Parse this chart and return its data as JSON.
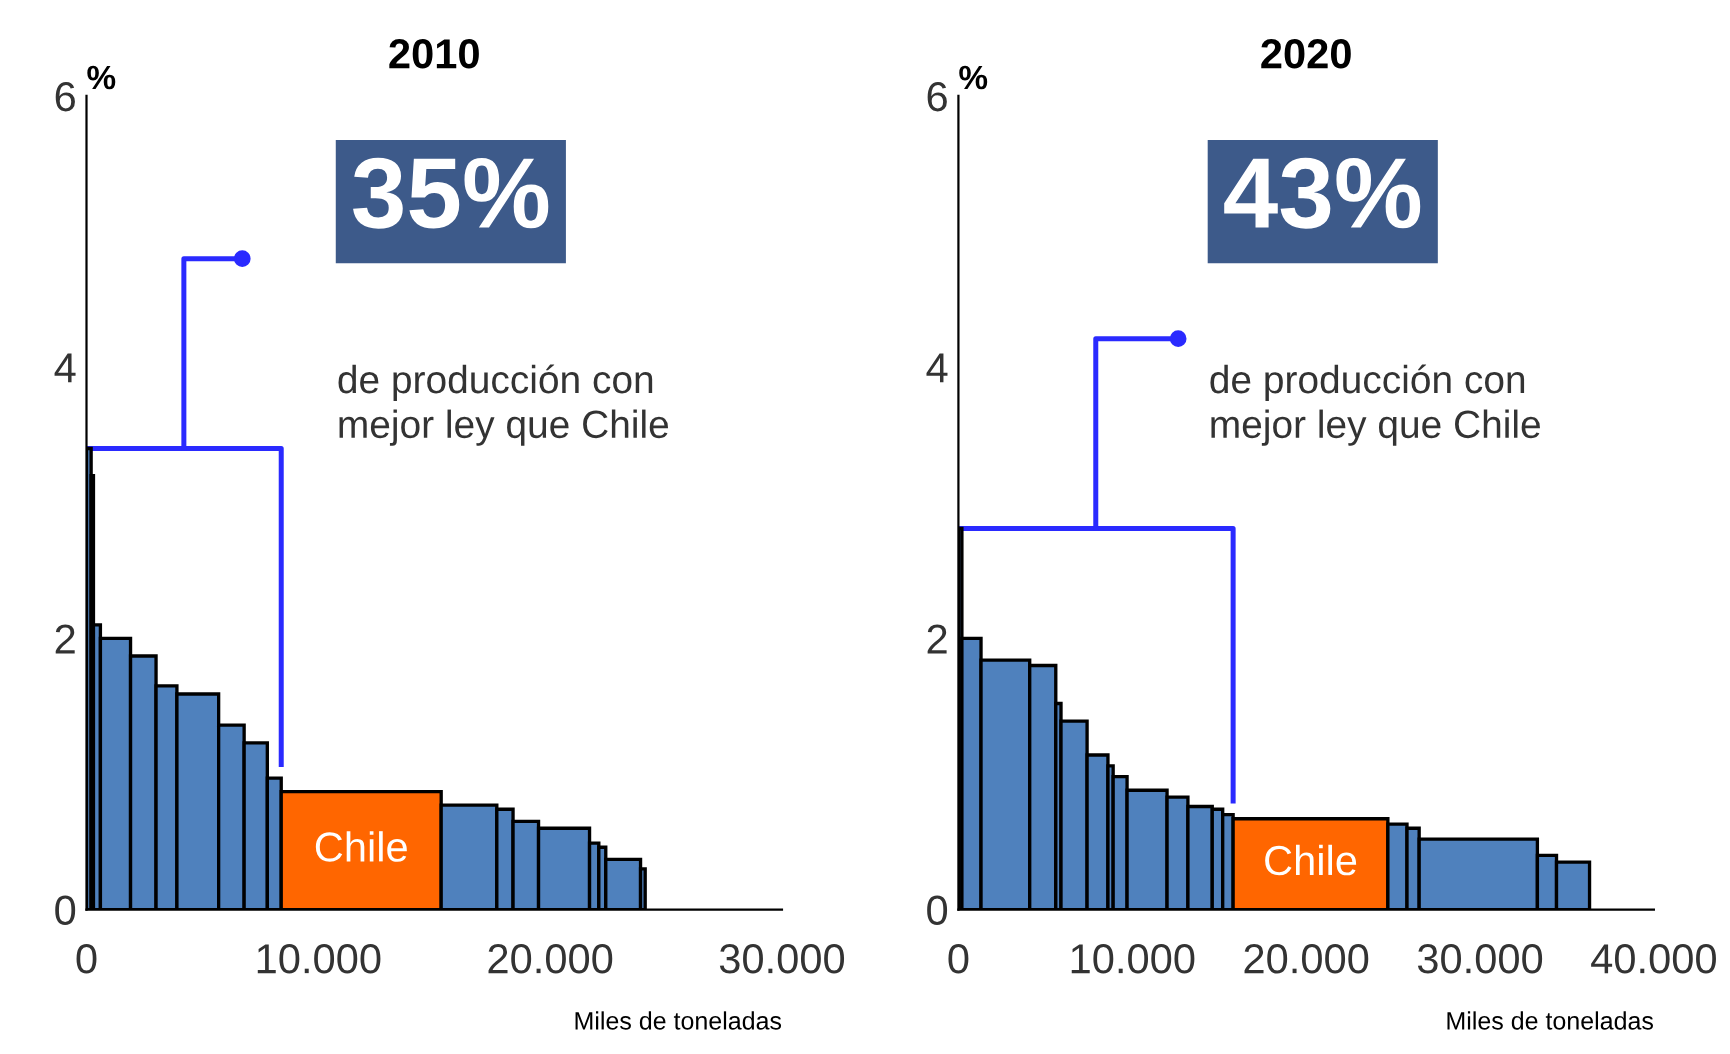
{
  "chart_data": [
    {
      "type": "histogram",
      "title": "2010",
      "ylabel": "%",
      "xlabel": "Miles de toneladas",
      "bins": [
        0,
        200,
        300,
        600,
        1900,
        3000,
        3900,
        5700,
        6800,
        7800,
        8400,
        15300,
        17700,
        18400,
        19500,
        21700,
        22100,
        22400,
        23900,
        24100
      ],
      "values": [
        3.4,
        3.2,
        2.1,
        2.0,
        1.87,
        1.65,
        1.59,
        1.36,
        1.23,
        0.97,
        0.87,
        0.77,
        0.74,
        0.65,
        0.6,
        0.49,
        0.46,
        0.37,
        0.3
      ],
      "colors": [
        "#4f81bd",
        "#4f81bd",
        "#4f81bd",
        "#4f81bd",
        "#4f81bd",
        "#4f81bd",
        "#4f81bd",
        "#4f81bd",
        "#4f81bd",
        "#4f81bd",
        "#ff6600",
        "#4f81bd",
        "#4f81bd",
        "#4f81bd",
        "#4f81bd",
        "#4f81bd",
        "#4f81bd",
        "#4f81bd",
        "#4f81bd"
      ],
      "xlim": [
        0,
        30000
      ],
      "xticks": [
        0,
        {
          "value": 10000,
          "label": "10.000"
        },
        {
          "value": 20000,
          "label": "20.000"
        },
        {
          "value": 30000,
          "label": "30.000"
        }
      ],
      "ylim": [
        0,
        6
      ],
      "yticks": [
        0,
        2,
        4,
        6
      ],
      "annotations": [
        "Chile",
        "35%",
        "de producción con\nmejor ley que Chile"
      ]
    },
    {
      "type": "histogram",
      "title": "2020",
      "ylabel": "%",
      "xlabel": "Miles de toneladas",
      "bins": [
        0,
        200,
        1300,
        4100,
        5600,
        5900,
        7400,
        8600,
        8900,
        9700,
        12000,
        13200,
        14600,
        15200,
        15800,
        24700,
        25800,
        26500,
        33300,
        34400,
        36300
      ],
      "values": [
        2.81,
        2.0,
        1.84,
        1.8,
        1.52,
        1.39,
        1.14,
        1.06,
        0.98,
        0.88,
        0.83,
        0.76,
        0.74,
        0.7,
        0.67,
        0.63,
        0.6,
        0.52,
        0.4,
        0.35
      ],
      "colors": [
        "#4f81bd",
        "#4f81bd",
        "#4f81bd",
        "#4f81bd",
        "#4f81bd",
        "#4f81bd",
        "#4f81bd",
        "#4f81bd",
        "#4f81bd",
        "#4f81bd",
        "#4f81bd",
        "#4f81bd",
        "#4f81bd",
        "#4f81bd",
        "#ff6600",
        "#4f81bd",
        "#4f81bd",
        "#4f81bd",
        "#4f81bd",
        "#4f81bd"
      ],
      "xlim": [
        0,
        40000
      ],
      "xticks": [
        0,
        {
          "value": 10000,
          "label": "10.000"
        },
        {
          "value": 20000,
          "label": "20.000"
        },
        {
          "value": 30000,
          "label": "30.000"
        },
        {
          "value": 40000,
          "label": "40.000"
        }
      ],
      "ylim": [
        0,
        6
      ],
      "yticks": [
        0,
        2,
        4,
        6
      ],
      "annotations": [
        "Chile",
        "43%",
        "de producción con\nmejor ley que Chile"
      ]
    }
  ]
}
